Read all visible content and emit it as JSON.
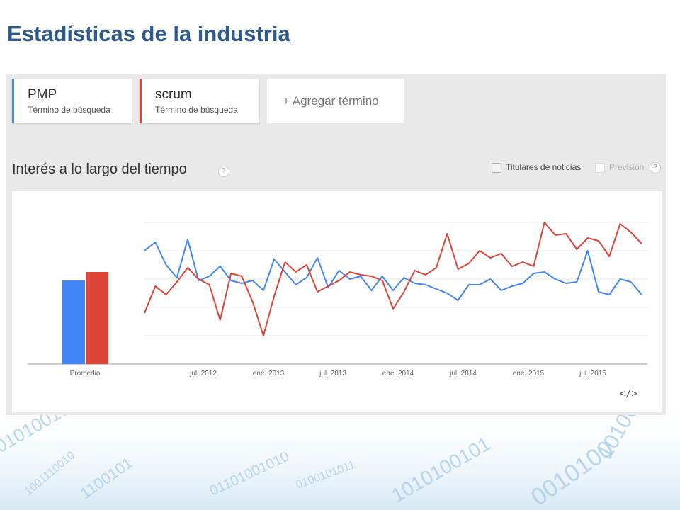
{
  "slide": {
    "title": "Estadísticas de la industria"
  },
  "terms": [
    {
      "name": "PMP",
      "subtitle": "Término de búsqueda",
      "color": "#4285f4"
    },
    {
      "name": "scrum",
      "subtitle": "Término de búsqueda",
      "color": "#db4437"
    }
  ],
  "add_term": {
    "label": "Agregar término",
    "plus": "+"
  },
  "section": {
    "title": "Interés a lo largo del tiempo",
    "help": "?",
    "options": [
      {
        "label": "Titulares de noticias",
        "checked": false,
        "enabled": true
      },
      {
        "label": "Previsión",
        "checked": false,
        "enabled": false
      }
    ]
  },
  "embed_icon": "</>",
  "chart_data": {
    "type": "line",
    "ylim": [
      0,
      100
    ],
    "grid": true,
    "average": {
      "label": "Promedio",
      "values": [
        59,
        65
      ]
    },
    "x_ticks": [
      "jul. 2012",
      "ene. 2013",
      "jul. 2013",
      "ene. 2014",
      "jul. 2014",
      "ene. 2015",
      "jul. 2015"
    ],
    "series": [
      {
        "name": "PMP",
        "color": "#4285f4",
        "values": [
          80,
          86,
          70,
          61,
          88,
          59,
          62,
          69,
          59,
          57,
          59,
          52,
          74,
          65,
          56,
          61,
          75,
          54,
          66,
          60,
          62,
          52,
          62,
          52,
          61,
          57,
          56,
          53,
          50,
          45,
          56,
          56,
          60,
          52,
          55,
          57,
          64,
          65,
          60,
          57,
          58,
          80,
          51,
          49,
          60,
          58,
          49
        ]
      },
      {
        "name": "scrum",
        "color": "#db4437",
        "values": [
          36,
          55,
          49,
          58,
          68,
          60,
          56,
          31,
          64,
          62,
          44,
          20,
          48,
          72,
          65,
          70,
          51,
          55,
          59,
          65,
          63,
          62,
          59,
          39,
          51,
          66,
          63,
          68,
          92,
          67,
          71,
          80,
          75,
          78,
          69,
          72,
          69,
          100,
          91,
          92,
          81,
          89,
          87,
          76,
          99,
          93,
          85
        ]
      }
    ]
  }
}
